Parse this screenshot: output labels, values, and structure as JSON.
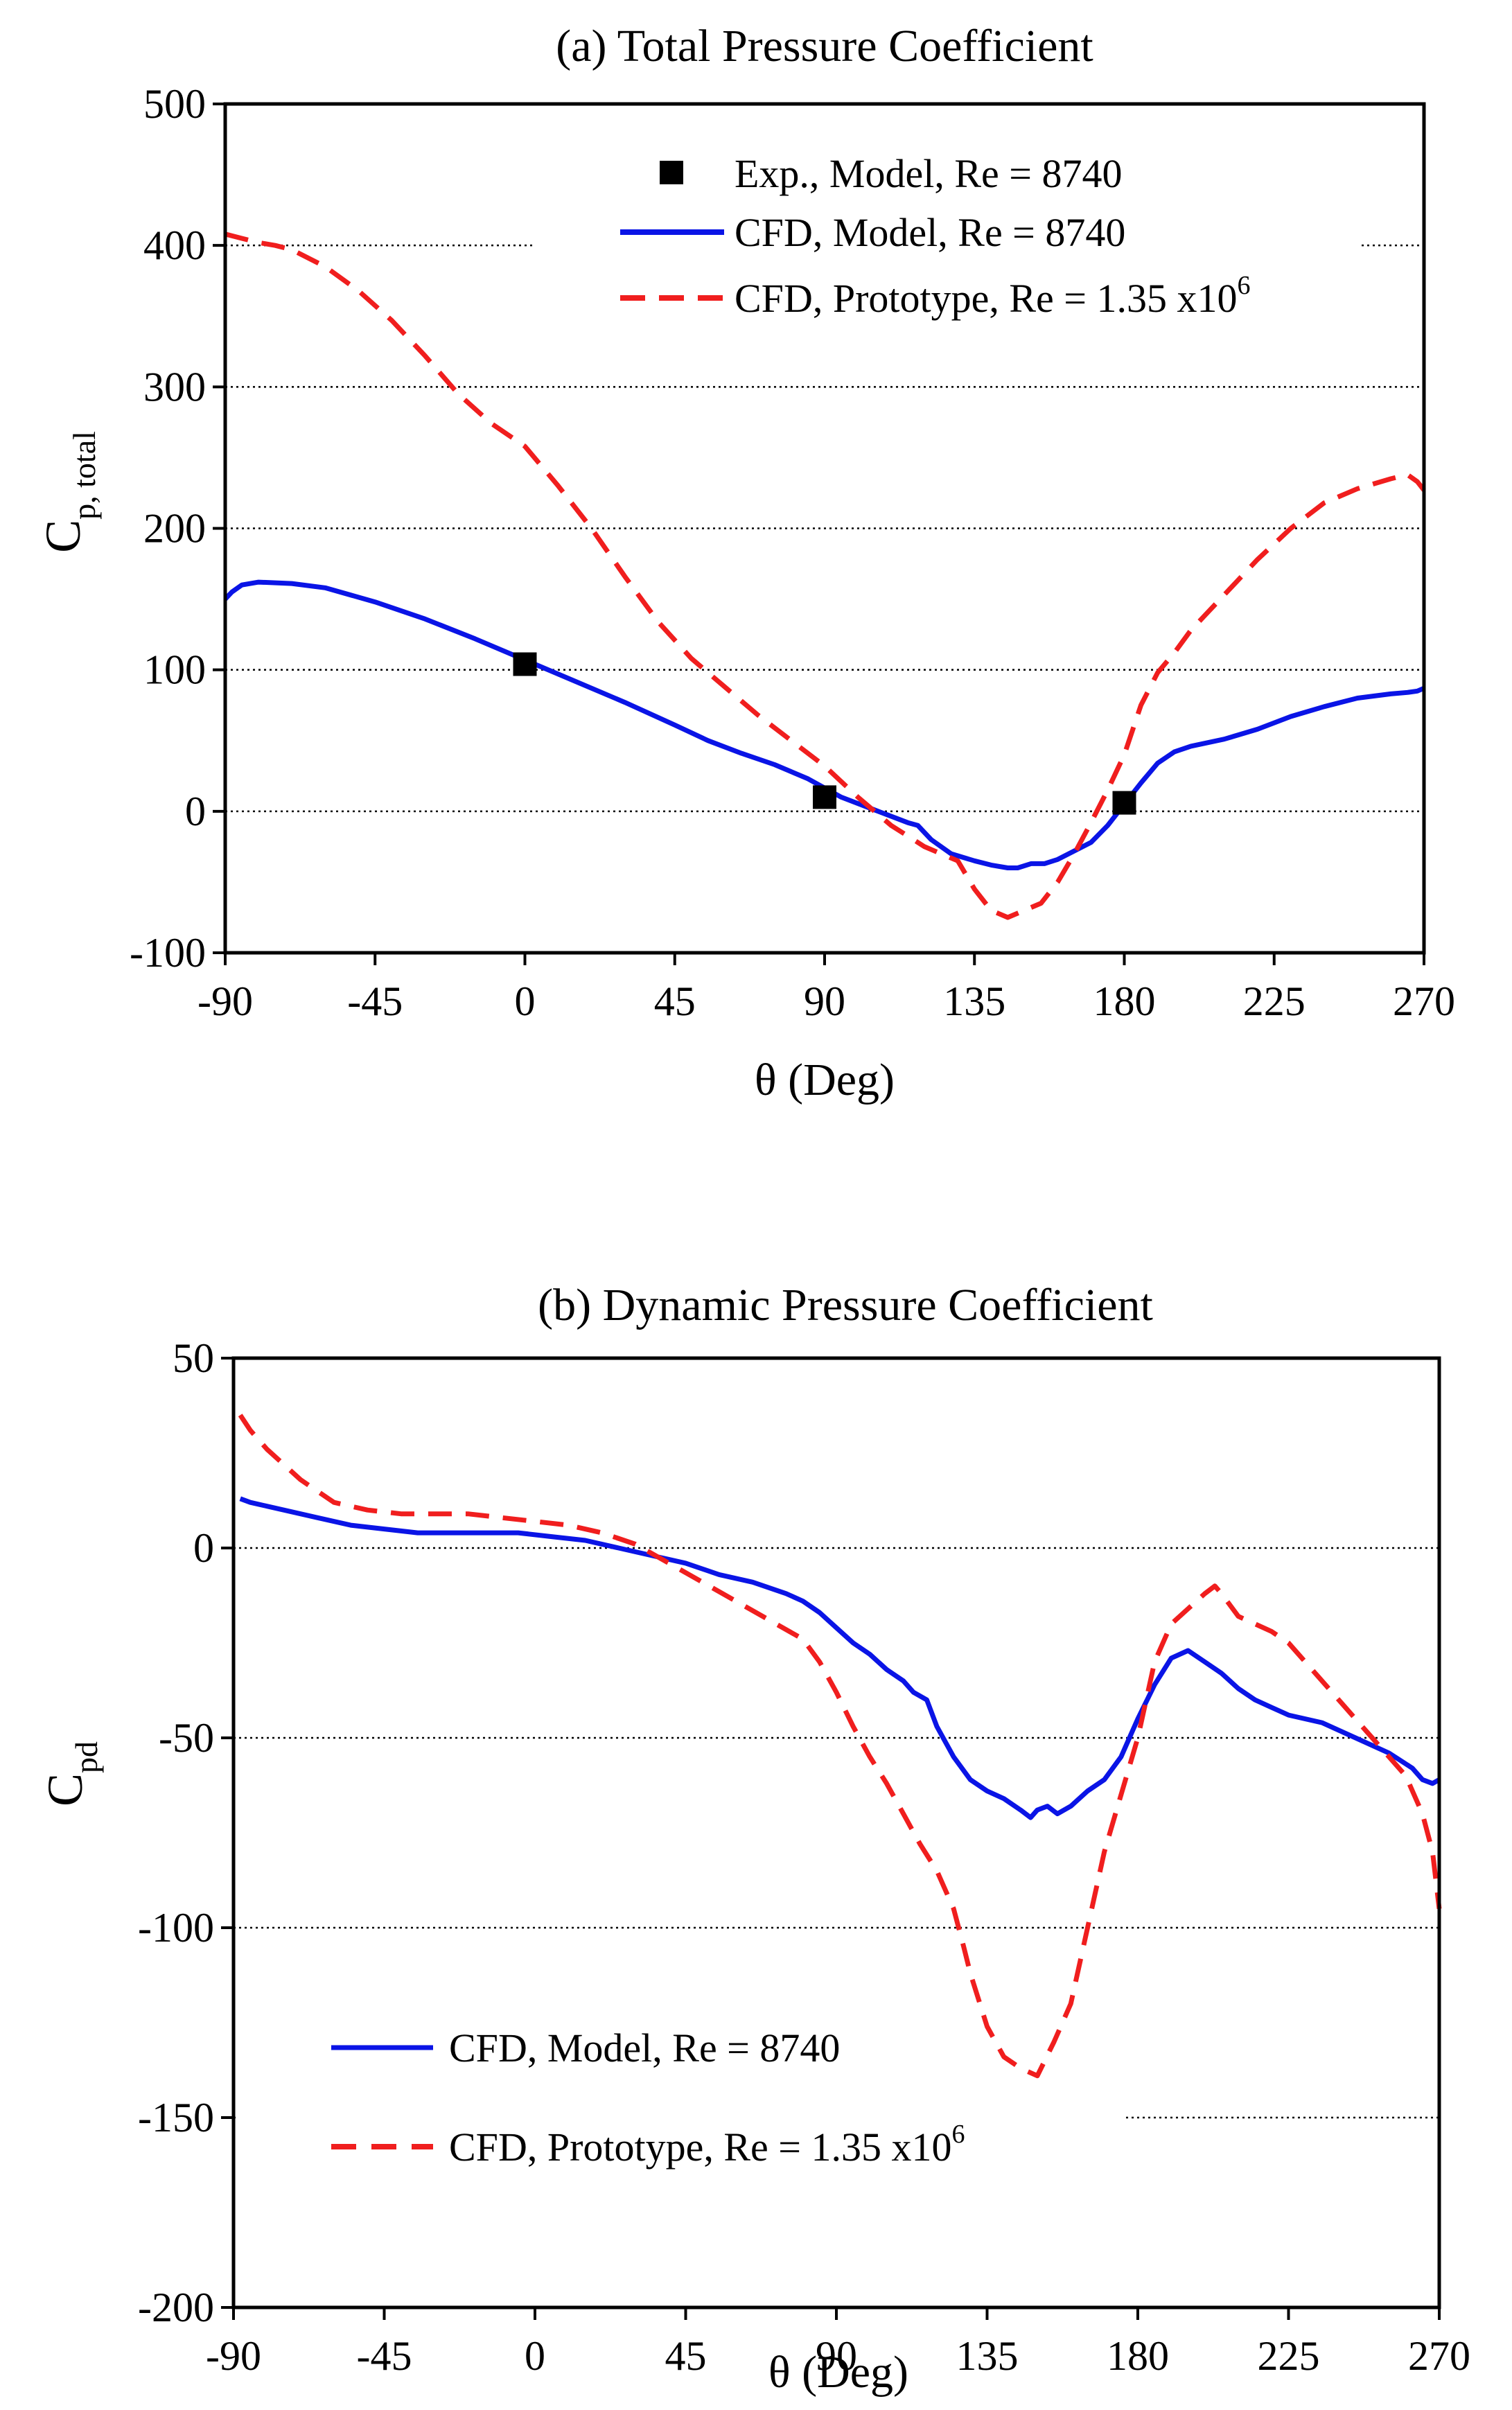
{
  "chart_data": [
    {
      "id": "a",
      "type": "line",
      "title": "(a) Total Pressure Coefficient",
      "xlabel": "θ (Deg)",
      "ylabel": "C",
      "ylabel_sub": "p, total",
      "xlim": [
        -90,
        270
      ],
      "ylim": [
        -100,
        500
      ],
      "xticks": [
        -90,
        -45,
        0,
        45,
        90,
        135,
        180,
        225,
        270
      ],
      "yticks": [
        -100,
        0,
        100,
        200,
        300,
        400,
        500
      ],
      "grid": "dotted horizontal",
      "legend": "top-center",
      "series": [
        {
          "name": "CFD, Model, Re = 8740",
          "style": "solid",
          "color": "#0a14e6",
          "x": [
            -90,
            -88,
            -85,
            -80,
            -70,
            -60,
            -45,
            -30,
            -15,
            0,
            15,
            30,
            45,
            55,
            65,
            75,
            85,
            95,
            105,
            115,
            118,
            122,
            128,
            135,
            140,
            145,
            148,
            152,
            156,
            160,
            165,
            170,
            175,
            180,
            185,
            190,
            195,
            200,
            210,
            220,
            230,
            240,
            250,
            260,
            265,
            268,
            270
          ],
          "y": [
            150,
            155,
            160,
            162,
            161,
            158,
            148,
            136,
            122,
            107,
            92,
            77,
            61,
            50,
            41,
            33,
            23,
            10,
            1,
            -8,
            -10,
            -20,
            -30,
            -35,
            -38,
            -40,
            -40,
            -37,
            -37,
            -34,
            -28,
            -22,
            -10,
            5,
            20,
            34,
            42,
            46,
            51,
            58,
            67,
            74,
            80,
            83,
            84,
            85,
            87
          ]
        },
        {
          "name": "CFD, Prototype, Re = 1.35 x10",
          "name_sup": "6",
          "style": "dashed",
          "color": "#f01e1e",
          "x": [
            -90,
            -85,
            -80,
            -75,
            -70,
            -60,
            -50,
            -40,
            -30,
            -20,
            -10,
            0,
            10,
            20,
            30,
            40,
            50,
            60,
            70,
            80,
            90,
            100,
            110,
            120,
            130,
            135,
            140,
            145,
            150,
            155,
            160,
            165,
            170,
            175,
            180,
            185,
            190,
            195,
            200,
            210,
            220,
            230,
            240,
            250,
            260,
            265,
            268,
            270
          ],
          "y": [
            408,
            405,
            402,
            400,
            397,
            385,
            368,
            347,
            322,
            295,
            274,
            258,
            230,
            200,
            166,
            134,
            108,
            88,
            68,
            50,
            32,
            10,
            -10,
            -25,
            -35,
            -55,
            -70,
            -75,
            -70,
            -65,
            -50,
            -30,
            -8,
            15,
            40,
            75,
            98,
            112,
            128,
            153,
            178,
            200,
            218,
            228,
            235,
            238,
            233,
            227
          ]
        },
        {
          "name": "Exp., Model, Re = 8740",
          "style": "markers",
          "marker": "square",
          "color": "#000000",
          "x": [
            0,
            90,
            180
          ],
          "y": [
            104,
            10,
            6
          ]
        }
      ]
    },
    {
      "id": "b",
      "type": "line",
      "title": "(b) Dynamic Pressure Coefficient",
      "xlabel": "θ (Deg)",
      "ylabel": "C",
      "ylabel_sub": "pd",
      "xlim": [
        -90,
        270
      ],
      "ylim": [
        -200,
        50
      ],
      "xticks": [
        -90,
        -45,
        0,
        45,
        90,
        135,
        180,
        225,
        270
      ],
      "yticks": [
        -200,
        -150,
        -100,
        -50,
        0,
        50
      ],
      "grid": "dotted horizontal",
      "legend": "bottom-left",
      "series": [
        {
          "name": "CFD, Model, Re = 8740",
          "style": "solid",
          "color": "#0a14e6",
          "x": [
            -88,
            -85,
            -80,
            -75,
            -65,
            -55,
            -45,
            -35,
            -25,
            -15,
            -5,
            5,
            15,
            25,
            35,
            45,
            55,
            65,
            75,
            80,
            85,
            90,
            95,
            100,
            105,
            110,
            113,
            117,
            120,
            125,
            130,
            135,
            140,
            145,
            148,
            150,
            153,
            156,
            160,
            165,
            170,
            175,
            180,
            185,
            190,
            195,
            200,
            205,
            210,
            215,
            220,
            225,
            235,
            245,
            255,
            262,
            265,
            268,
            270
          ],
          "y": [
            13,
            12,
            11,
            10,
            8,
            6,
            5,
            4,
            4,
            4,
            4,
            3,
            2,
            0,
            -2,
            -4,
            -7,
            -9,
            -12,
            -14,
            -17,
            -21,
            -25,
            -28,
            -32,
            -35,
            -38,
            -40,
            -47,
            -55,
            -61,
            -64,
            -66,
            -69,
            -71,
            -69,
            -68,
            -70,
            -68,
            -64,
            -61,
            -55,
            -45,
            -36,
            -29,
            -27,
            -30,
            -33,
            -37,
            -40,
            -42,
            -44,
            -46,
            -50,
            -54,
            -58,
            -61,
            -62,
            -61
          ]
        },
        {
          "name": "CFD, Prototype, Re = 1.35 x10",
          "name_sup": "6",
          "style": "dashed",
          "color": "#f01e1e",
          "x": [
            -88,
            -85,
            -80,
            -70,
            -60,
            -50,
            -40,
            -30,
            -20,
            -10,
            0,
            10,
            20,
            30,
            40,
            50,
            60,
            70,
            80,
            85,
            90,
            95,
            100,
            105,
            110,
            115,
            120,
            125,
            128,
            130,
            135,
            140,
            145,
            150,
            155,
            160,
            165,
            170,
            175,
            180,
            185,
            190,
            195,
            200,
            203,
            205,
            210,
            215,
            220,
            225,
            230,
            240,
            250,
            260,
            265,
            268,
            270
          ],
          "y": [
            35,
            31,
            26,
            18,
            12,
            10,
            9,
            9,
            9,
            8,
            7,
            6,
            4,
            1,
            -4,
            -9,
            -14,
            -19,
            -24,
            -30,
            -38,
            -47,
            -55,
            -62,
            -70,
            -78,
            -85,
            -95,
            -105,
            -112,
            -126,
            -134,
            -137,
            -139,
            -130,
            -120,
            -100,
            -80,
            -65,
            -50,
            -30,
            -20,
            -16,
            -12,
            -10,
            -12,
            -18,
            -20,
            -22,
            -25,
            -30,
            -40,
            -50,
            -60,
            -70,
            -80,
            -95
          ]
        }
      ]
    }
  ]
}
